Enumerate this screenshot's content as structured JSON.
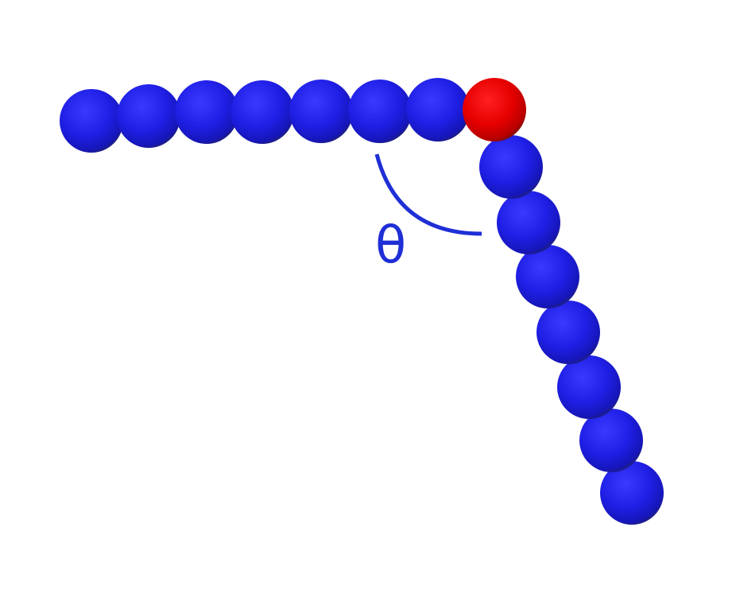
{
  "diagram": {
    "label": "θ",
    "colors": {
      "bead": "#1f1fe6",
      "joint_bead": "#e60000",
      "arc": "#1f2fd6",
      "label": "#1f2fd6",
      "background": "#ffffff"
    },
    "horizontal_arm": {
      "bead_count": 7
    },
    "joint": {
      "bead_count": 1
    },
    "bent_arm": {
      "bead_count": 7
    }
  }
}
